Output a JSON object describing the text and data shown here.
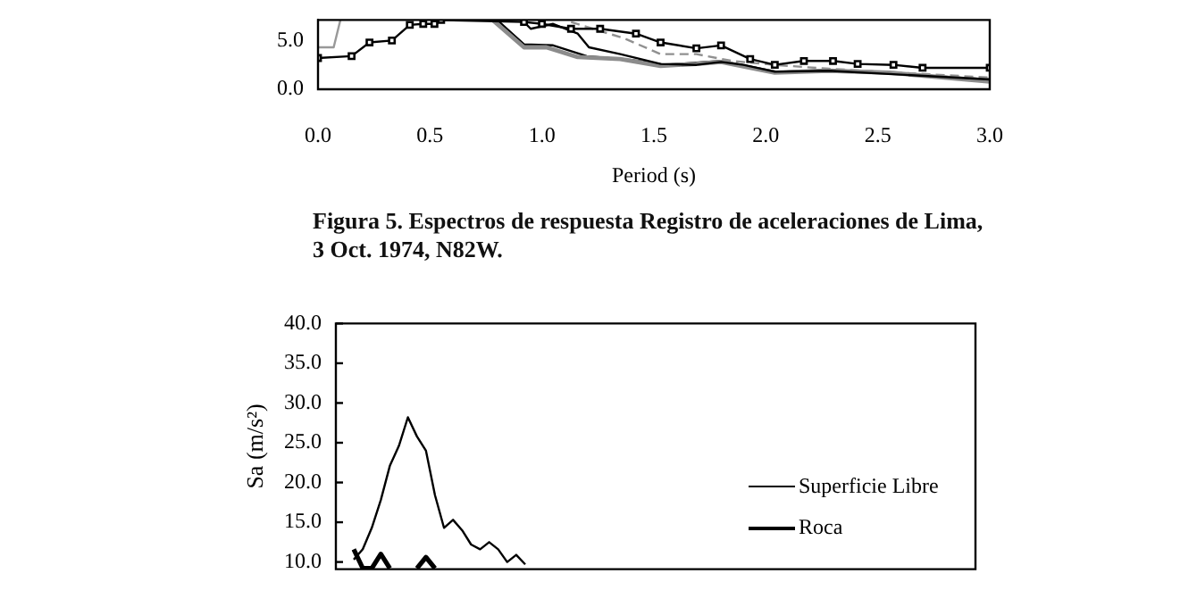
{
  "chart_data": [
    {
      "type": "line",
      "xlabel": "Period (s)",
      "annotations": [
        "Figura 5. Espectros de respuesta Registro de aceleraciones de Lima, 3 Oct. 1974, N82W."
      ],
      "xlim": [
        0,
        3
      ],
      "xticks": [
        {
          "value": 0,
          "label": "0.0"
        },
        {
          "value": 0.5,
          "label": "0.5"
        },
        {
          "value": 1,
          "label": "1.0"
        },
        {
          "value": 1.5,
          "label": "1.5"
        },
        {
          "value": 2,
          "label": "2.0"
        },
        {
          "value": 2.5,
          "label": "2.5"
        },
        {
          "value": 3,
          "label": "3.0"
        }
      ],
      "ylim": [
        0,
        7.1
      ],
      "yticks": [
        {
          "value": 0,
          "label": "0.0"
        },
        {
          "value": 5,
          "label": "5.0"
        }
      ],
      "grid": false,
      "legend": false,
      "series": [
        {
          "color": "#000000",
          "marker": "square",
          "x": [
            0,
            0.15,
            0.23,
            0.33,
            0.41,
            0.47,
            0.52,
            0.55,
            0.92,
            1.0,
            1.13,
            1.26,
            1.42,
            1.53,
            1.69,
            1.8,
            1.93,
            2.04,
            2.17,
            2.3,
            2.41,
            2.57,
            2.7,
            3.0
          ],
          "values": [
            3.2,
            3.4,
            4.8,
            5.0,
            6.6,
            6.7,
            6.7,
            7.1,
            6.9,
            6.7,
            6.2,
            6.2,
            5.7,
            4.8,
            4.2,
            4.5,
            3.1,
            2.5,
            2.9,
            2.9,
            2.6,
            2.5,
            2.2,
            2.2
          ]
        },
        {
          "color": "#000000",
          "x": [
            0.92,
            0.95,
            1.05,
            1.16,
            1.21,
            1.35,
            1.53,
            1.69,
            1.8,
            1.9,
            2.04,
            2.28,
            3.0
          ],
          "values": [
            6.9,
            6.2,
            6.7,
            5.7,
            4.3,
            3.6,
            2.6,
            2.5,
            2.8,
            2.5,
            1.8,
            1.9,
            1.0
          ]
        },
        {
          "color": "#909090",
          "line_style": "dashed",
          "x": [
            1.13,
            1.37,
            1.53,
            1.69,
            1.85,
            2.04,
            2.28,
            3.0
          ],
          "values": [
            6.9,
            5.2,
            3.6,
            3.6,
            2.9,
            2.5,
            2.1,
            1.2
          ]
        },
        {
          "color": "#8c8c8c",
          "x": [
            0.78,
            0.92,
            1.02,
            1.16,
            1.35,
            1.53,
            1.69,
            1.8,
            2.04,
            2.28,
            2.55,
            3.0
          ],
          "values": [
            7.1,
            4.3,
            4.3,
            3.3,
            3.1,
            2.4,
            2.6,
            2.8,
            1.7,
            1.9,
            1.7,
            0.8
          ]
        },
        {
          "color": "#000000",
          "x": [
            0.8,
            0.92,
            1.05,
            1.2,
            1.4,
            1.55,
            1.8,
            2.05,
            2.3,
            3.0
          ],
          "values": [
            7.1,
            4.6,
            4.5,
            3.4,
            3.0,
            2.5,
            2.9,
            1.8,
            2.0,
            1.0
          ]
        },
        {
          "color": "#999999",
          "x": [
            0,
            0.07,
            0.1
          ],
          "values": [
            4.3,
            4.3,
            7.1
          ]
        }
      ]
    },
    {
      "type": "line",
      "ylabel": "Sa (m/s²)",
      "ylim": [
        9.1,
        40
      ],
      "yticks": [
        {
          "value": 10,
          "label": "10.0"
        },
        {
          "value": 15,
          "label": "15.0"
        },
        {
          "value": 20,
          "label": "20.0"
        },
        {
          "value": 25,
          "label": "25.0"
        },
        {
          "value": 30,
          "label": "30.0"
        },
        {
          "value": 35,
          "label": "35.0"
        },
        {
          "value": 40,
          "label": "40.0"
        }
      ],
      "grid": false,
      "legend": "right",
      "tick_labels": "y",
      "categories": [
        null,
        null,
        null,
        null,
        null,
        null,
        null,
        null,
        null,
        null,
        null,
        null,
        null,
        null,
        null,
        null,
        null,
        null,
        null,
        null
      ],
      "series": [
        {
          "name": "Superficie Libre",
          "color": "#000000",
          "values": [
            10.3,
            11.6,
            14.3,
            17.8,
            22.1,
            24.6,
            28.2,
            25.8,
            24.0,
            18.4,
            14.3,
            15.3,
            14.0,
            12.2,
            11.6,
            12.5,
            11.6,
            10.0,
            10.9,
            9.7
          ]
        },
        {
          "name": "Roca",
          "color": "#000000",
          "values": [
            11.6,
            9.2,
            9.2,
            11.0,
            9.2,
            null,
            null,
            9.2,
            10.6,
            9.2,
            null,
            null,
            null,
            null,
            null,
            null,
            null,
            null,
            null,
            null
          ]
        }
      ]
    }
  ]
}
